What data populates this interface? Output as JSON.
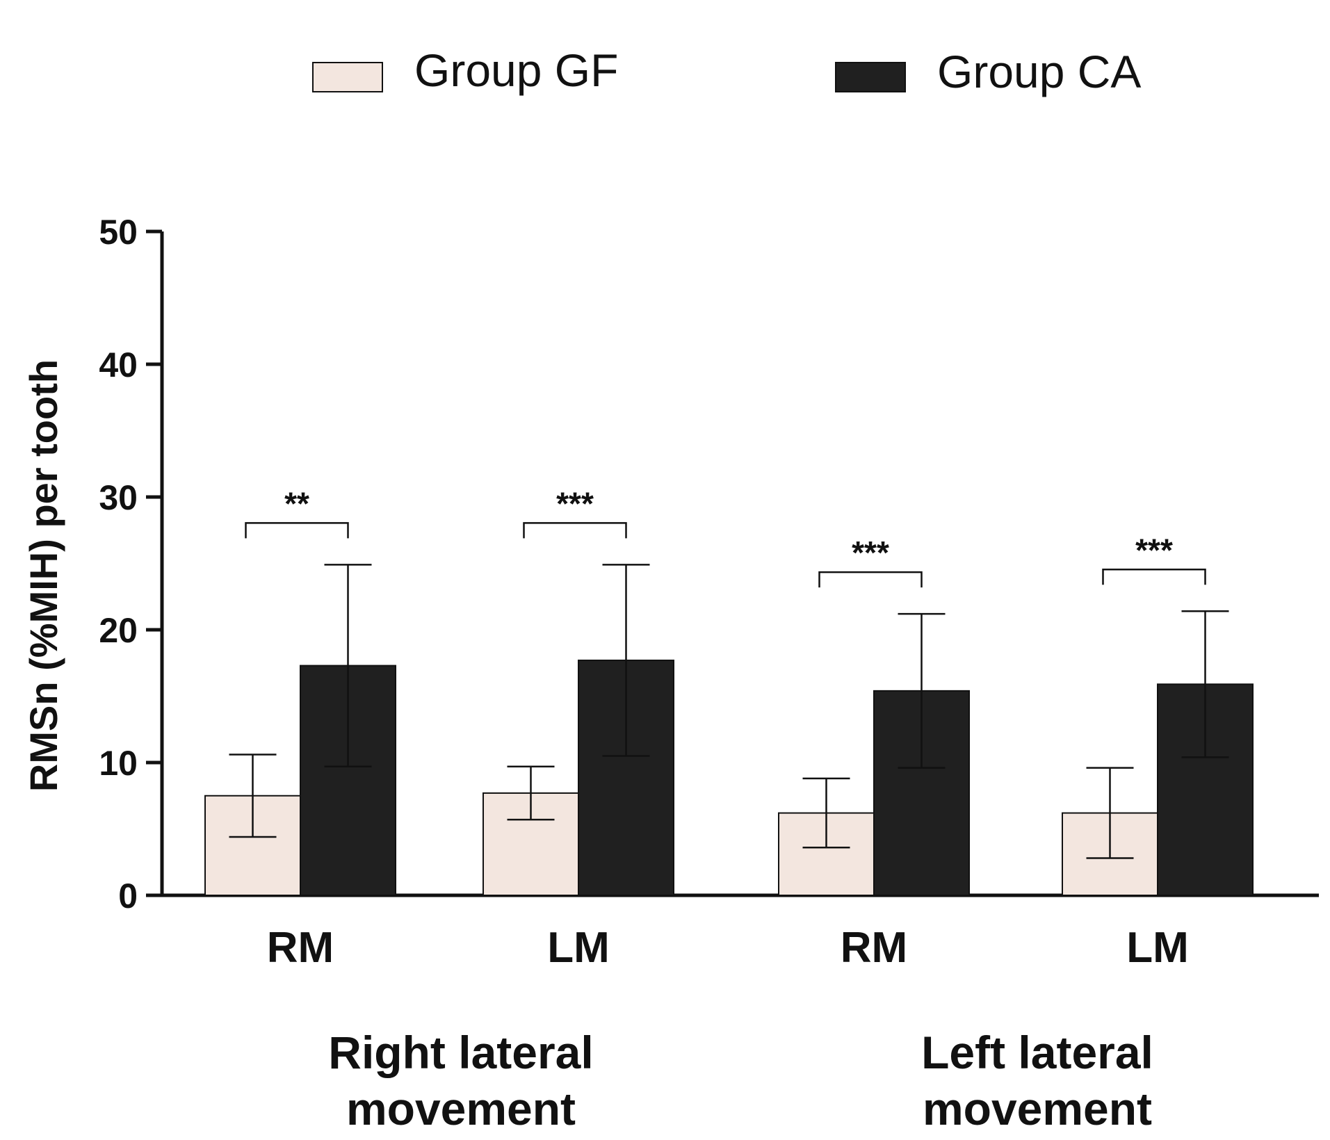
{
  "chart_data": {
    "type": "bar",
    "title": "",
    "xlabel": "",
    "ylabel": "RMSn (%MIH) per tooth",
    "ylim": [
      0,
      50
    ],
    "yticks": [
      "0",
      "10",
      "20",
      "30",
      "40",
      "50"
    ],
    "categories": [
      "RM",
      "LM",
      "RM",
      "LM"
    ],
    "groups": [
      {
        "label_line1": "Right lateral",
        "label_line2": "movement"
      },
      {
        "label_line1": "Left lateral",
        "label_line2": "movement"
      }
    ],
    "series": [
      {
        "name": "Group GF",
        "color": "#f3e6df",
        "values": [
          7.5,
          7.7,
          6.2,
          6.2
        ],
        "errors": [
          3.1,
          2.0,
          2.6,
          3.4
        ]
      },
      {
        "name": "Group CA",
        "color": "#202020",
        "values": [
          17.3,
          17.7,
          15.4,
          15.9
        ],
        "errors": [
          7.6,
          7.2,
          5.8,
          5.5
        ]
      }
    ],
    "significance": [
      "**",
      "***",
      "***",
      "***"
    ],
    "legend_position": "top"
  }
}
